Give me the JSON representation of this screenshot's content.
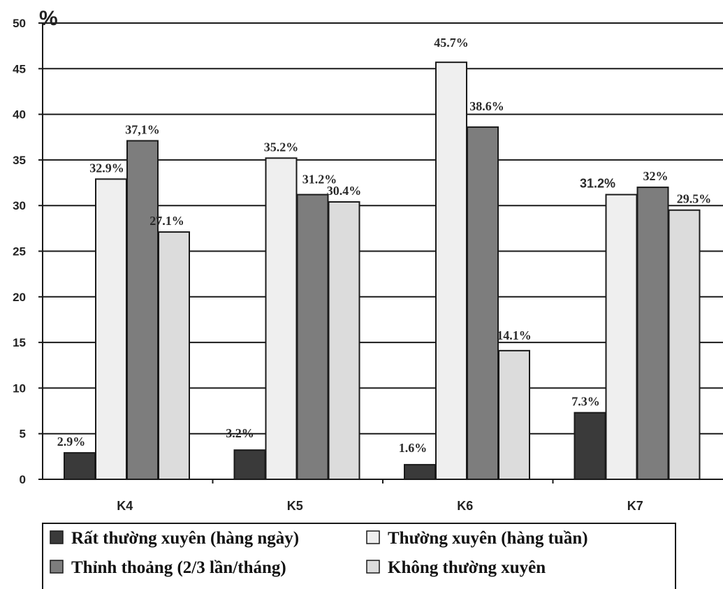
{
  "chart_data": {
    "type": "bar",
    "unit_label": "%",
    "categories": [
      "K4",
      "K5",
      "K6",
      "K7"
    ],
    "ylim": [
      0,
      50
    ],
    "yticks": [
      "0",
      "5",
      "10",
      "15",
      "20",
      "25",
      "30",
      "35",
      "40",
      "45",
      "50"
    ],
    "grid": true,
    "legend_position": "bottom",
    "series": [
      {
        "name": "Rất thường xuyên (hàng ngày)",
        "color": "#3a3a3a",
        "values": [
          2.9,
          3.2,
          1.6,
          7.3
        ],
        "labels": [
          "2.9%",
          "3.2%",
          "1.6%",
          "7.3%"
        ]
      },
      {
        "name": "Thường xuyên (hàng tuần)",
        "color": "#efefef",
        "values": [
          32.9,
          35.2,
          45.7,
          31.2
        ],
        "labels": [
          "32.9%",
          "35.2%",
          "45.7%",
          "31.2%"
        ]
      },
      {
        "name": "Thỉnh thoảng (2/3 lần/tháng)",
        "color": "#7d7d7d",
        "values": [
          37.1,
          31.2,
          38.6,
          32
        ],
        "labels": [
          "37,1%",
          "31.2%",
          "38.6%",
          "32%"
        ]
      },
      {
        "name": "Không thường xuyên",
        "color": "#dcdcdc",
        "values": [
          27.1,
          30.4,
          14.1,
          29.5
        ],
        "labels": [
          "27.1%",
          "30.4%",
          "14.1%",
          "29.5%"
        ]
      }
    ]
  }
}
